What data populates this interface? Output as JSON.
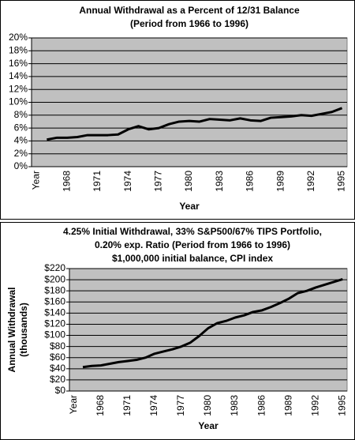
{
  "chart_data": [
    {
      "type": "line",
      "title": [
        "Annual Withdrawal as a Percent of 12/31 Balance",
        "(Period from 1966 to 1996)"
      ],
      "x_label": "Year",
      "categories": [
        "Year",
        null,
        null,
        "1968",
        null,
        null,
        "1971",
        null,
        null,
        "1974",
        null,
        null,
        "1977",
        null,
        null,
        "1980",
        null,
        null,
        "1983",
        null,
        null,
        "1986",
        null,
        null,
        "1989",
        null,
        null,
        "1992",
        null,
        null,
        "1995"
      ],
      "values": [
        null,
        4.2,
        4.5,
        4.5,
        4.6,
        4.9,
        4.9,
        4.9,
        5.0,
        5.8,
        6.3,
        5.8,
        6.0,
        6.6,
        7.0,
        7.1,
        7.0,
        7.4,
        7.3,
        7.2,
        7.5,
        7.2,
        7.1,
        7.6,
        7.7,
        7.8,
        8.0,
        7.9,
        8.2,
        8.5,
        9.1
      ],
      "color": "#000000",
      "ylim": [
        0,
        20
      ],
      "yticks": [
        {
          "value": 0,
          "label": "0%"
        },
        {
          "value": 2,
          "label": "2%"
        },
        {
          "value": 4,
          "label": "4%"
        },
        {
          "value": 6,
          "label": "6%"
        },
        {
          "value": 8,
          "label": "8%"
        },
        {
          "value": 10,
          "label": "10%"
        },
        {
          "value": 12,
          "label": "12%"
        },
        {
          "value": 14,
          "label": "14%"
        },
        {
          "value": 16,
          "label": "16%"
        },
        {
          "value": 18,
          "label": "18%"
        },
        {
          "value": 20,
          "label": "20%"
        }
      ],
      "grid": true
    },
    {
      "type": "line",
      "title": [
        "4.25% Initial Withdrawal, 33% S&P500/67% TIPS Portfolio,",
        "0.20% exp. Ratio  (Period from 1966 to 1996)",
        "$1,000,000 initial balance, CPI index"
      ],
      "x_label": "Year",
      "y_label": [
        "Annual Withdrawal",
        "(thousands)"
      ],
      "categories": [
        "Year",
        null,
        null,
        "1968",
        null,
        null,
        "1971",
        null,
        null,
        "1974",
        null,
        null,
        "1977",
        null,
        null,
        "1980",
        null,
        null,
        "1983",
        null,
        null,
        "1986",
        null,
        null,
        "1989",
        null,
        null,
        "1992",
        null,
        null,
        "1995"
      ],
      "values": [
        null,
        43,
        45,
        46,
        49,
        52,
        54,
        56,
        60,
        67,
        71,
        75,
        80,
        87,
        99,
        113,
        122,
        126,
        132,
        136,
        142,
        145,
        151,
        158,
        166,
        176,
        180,
        186,
        191,
        196,
        201
      ],
      "color": "#000000",
      "ylim": [
        0,
        220
      ],
      "yticks": [
        {
          "value": 0,
          "label": "$0"
        },
        {
          "value": 20,
          "label": "$20"
        },
        {
          "value": 40,
          "label": "$40"
        },
        {
          "value": 60,
          "label": "$60"
        },
        {
          "value": 80,
          "label": "$80"
        },
        {
          "value": 100,
          "label": "$100"
        },
        {
          "value": 120,
          "label": "$120"
        },
        {
          "value": 140,
          "label": "$140"
        },
        {
          "value": 160,
          "label": "$160"
        },
        {
          "value": 180,
          "label": "$180"
        },
        {
          "value": 200,
          "label": "$200"
        },
        {
          "value": 220,
          "label": "$220"
        }
      ],
      "grid": true
    }
  ]
}
